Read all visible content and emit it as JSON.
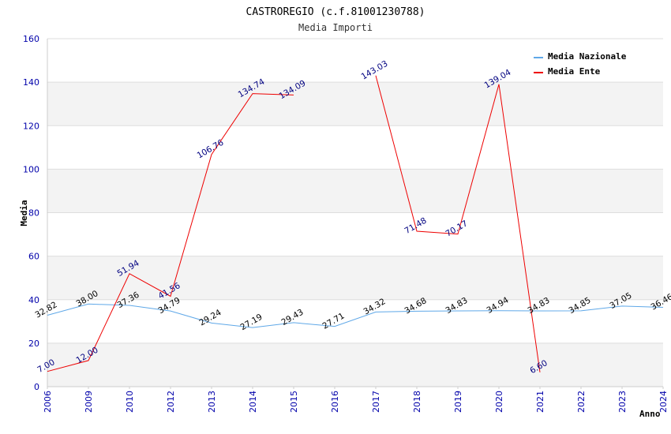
{
  "chart_data": {
    "type": "line",
    "title": "CASTROREGIO (c.f.81001230788)",
    "subtitle": "Media Importi",
    "xlabel": "Anno",
    "ylabel": "Media",
    "ylim": [
      0,
      160
    ],
    "yticks": [
      0,
      20,
      40,
      60,
      80,
      100,
      120,
      140,
      160
    ],
    "categories": [
      "2006",
      "2009",
      "2010",
      "2012",
      "2013",
      "2014",
      "2015",
      "2016",
      "2017",
      "2018",
      "2019",
      "2020",
      "2021",
      "2022",
      "2023",
      "2024"
    ],
    "series": [
      {
        "name": "Media Nazionale",
        "color": "#5fa8e8",
        "label_color": "#000000",
        "values": [
          32.82,
          38.0,
          37.36,
          34.79,
          29.24,
          27.19,
          29.43,
          27.71,
          34.32,
          34.68,
          34.83,
          34.94,
          34.83,
          34.85,
          37.05,
          36.46
        ],
        "labels": [
          "32.82",
          "38.00",
          "37.36",
          "34.79",
          "29.24",
          "27.19",
          "29.43",
          "27.71",
          "34.32",
          "34.68",
          "34.83",
          "34.94",
          "34.83",
          "34.85",
          "37.05",
          "36.46"
        ]
      },
      {
        "name": "Media Ente",
        "color": "#ee0000",
        "label_color": "#000080",
        "values": [
          7.0,
          12.0,
          51.94,
          41.56,
          106.76,
          134.74,
          134.09,
          null,
          143.03,
          71.48,
          70.17,
          139.04,
          6.6,
          null,
          null,
          null
        ],
        "labels": [
          "7.00",
          "12.00",
          "51.94",
          "41.56",
          "106.76",
          "134.74",
          "134.09",
          null,
          "143.03",
          "71.48",
          "70.17",
          "139.04",
          "6.60",
          null,
          null,
          null
        ]
      }
    ],
    "legend": {
      "position": "top-right"
    },
    "grid": true
  }
}
